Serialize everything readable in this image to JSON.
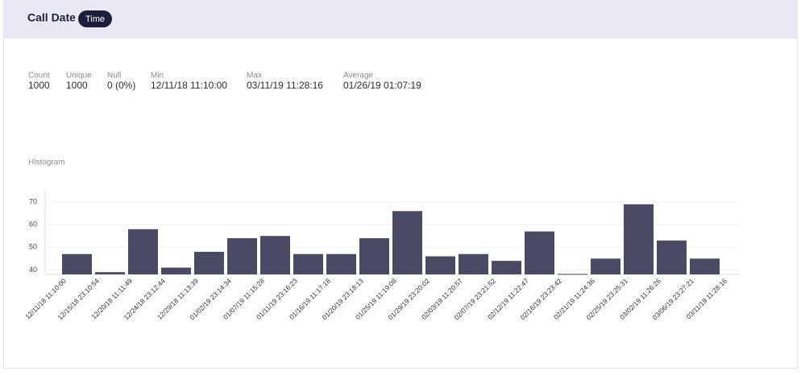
{
  "header": {
    "title": "Call Date",
    "badge": "Time"
  },
  "stats": [
    {
      "label": "Count",
      "value": "1000"
    },
    {
      "label": "Unique",
      "value": "1000"
    },
    {
      "label": "Null",
      "value": "0 (0%)"
    },
    {
      "label": "Min",
      "value": "12/11/18 11:10:00"
    },
    {
      "label": "Max",
      "value": "03/11/19 11:28:16"
    },
    {
      "label": "Average",
      "value": "01/26/19 01:07:19"
    }
  ],
  "chart_data": {
    "type": "bar",
    "title": "Histogram",
    "color": "#4a4a64",
    "grid": true,
    "categories": [
      "12/11/18 11:10:00",
      "12/15/18 23:10:54",
      "12/20/18 11:11:49",
      "12/24/18 23:12:44",
      "12/29/18 11:13:39",
      "01/02/19 23:14:34",
      "01/07/19 11:15:28",
      "01/11/19 23:16:23",
      "01/16/19 11:17:18",
      "01/20/19 23:18:13",
      "01/25/19 11:19:08",
      "01/29/19 23:20:02",
      "02/03/19 11:20:57",
      "02/07/19 23:21:52",
      "02/12/19 11:22:47",
      "02/16/19 23:23:42",
      "02/21/19 11:24:36",
      "02/25/19 23:25:31",
      "03/02/19 11:26:26",
      "03/06/19 23:27:21"
    ],
    "extra_label": "03/11/19 11:28:16",
    "values": [
      47,
      39,
      58,
      41,
      48,
      54,
      55,
      47,
      47,
      54,
      66,
      46,
      47,
      44,
      57,
      38.2,
      45,
      69,
      53,
      45
    ],
    "ylim": [
      38,
      75
    ],
    "yticks": [
      40,
      50,
      60,
      70
    ]
  }
}
